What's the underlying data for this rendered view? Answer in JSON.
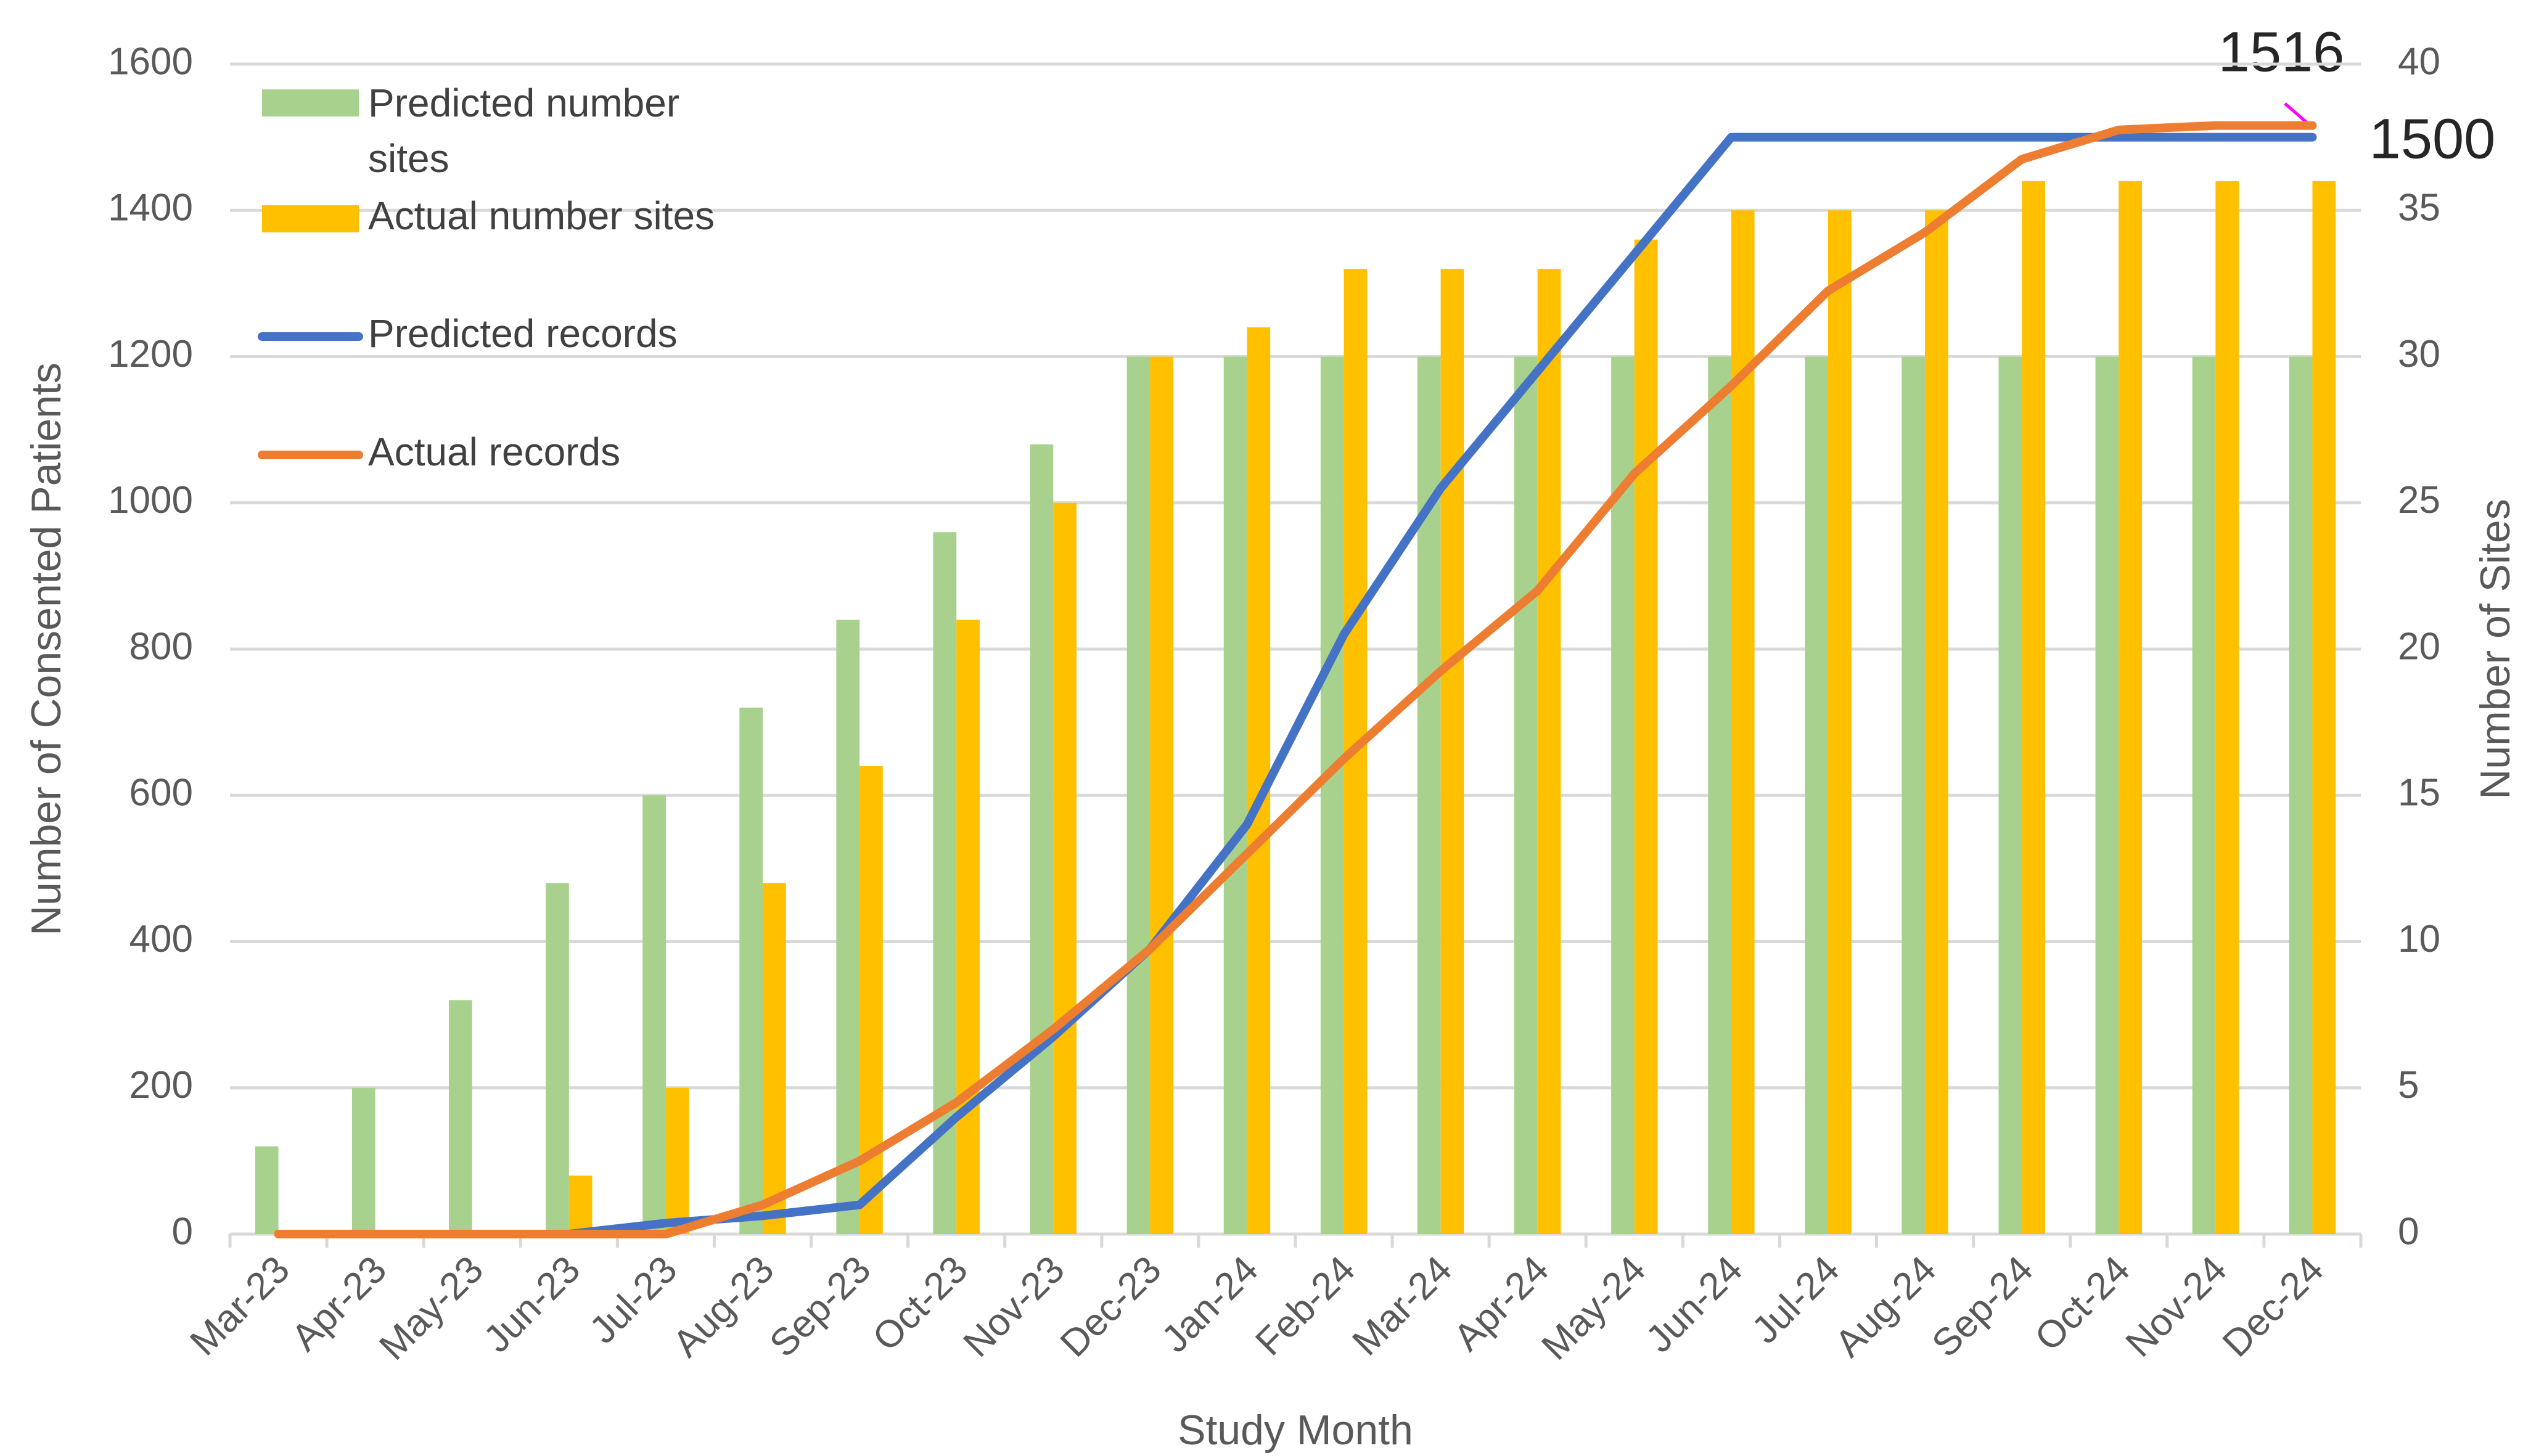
{
  "chart_data": {
    "type": "bar",
    "categories": [
      "Mar-23",
      "Apr-23",
      "May-23",
      "Jun-23",
      "Jul-23",
      "Aug-23",
      "Sep-23",
      "Oct-23",
      "Nov-23",
      "Dec-23",
      "Jan-24",
      "Feb-24",
      "Mar-24",
      "Apr-24",
      "May-24",
      "Jun-24",
      "Jul-24",
      "Aug-24",
      "Sep-24",
      "Oct-24",
      "Nov-24",
      "Dec-24"
    ],
    "series": [
      {
        "name": "Predicted number sites",
        "type": "bar",
        "axis": "y2",
        "color": "#a9d18e",
        "values": [
          3,
          5,
          8,
          12,
          15,
          18,
          21,
          24,
          27,
          30,
          30,
          30,
          30,
          30,
          30,
          30,
          30,
          30,
          30,
          30,
          30,
          30
        ]
      },
      {
        "name": "Actual number sites",
        "type": "bar",
        "axis": "y2",
        "color": "#ffc000",
        "values": [
          0,
          0,
          0,
          2,
          5,
          12,
          16,
          21,
          25,
          30,
          31,
          33,
          33,
          33,
          34,
          35,
          35,
          35,
          36,
          36,
          36,
          36
        ]
      },
      {
        "name": "Predicted records",
        "type": "line",
        "color": "#4472c4",
        "values": [
          0,
          0,
          0,
          0,
          15,
          25,
          40,
          160,
          270,
          390,
          560,
          820,
          1020,
          1180,
          1340,
          1500,
          1500,
          1500,
          1500,
          1500,
          1500,
          1500
        ]
      },
      {
        "name": "Actual records",
        "type": "line",
        "color": "#ed7d31",
        "values": [
          0,
          0,
          0,
          0,
          0,
          40,
          100,
          180,
          280,
          390,
          520,
          650,
          770,
          880,
          1040,
          1160,
          1290,
          1370,
          1470,
          1510,
          1516,
          1516
        ]
      }
    ],
    "xlabel": "Study Month",
    "ylabel": "Number of Consented  Patients",
    "y2label": "Number of Sites",
    "ylim": [
      0,
      1600
    ],
    "yticks": [
      0,
      200,
      400,
      600,
      800,
      1000,
      1200,
      1400,
      1600
    ],
    "y2lim": [
      0,
      40
    ],
    "y2ticks": [
      0,
      5,
      10,
      15,
      20,
      25,
      30,
      35,
      40
    ],
    "grid": true,
    "legend": "upper left",
    "annotations": [
      {
        "text": "1516"
      },
      {
        "text": "1500"
      }
    ]
  }
}
